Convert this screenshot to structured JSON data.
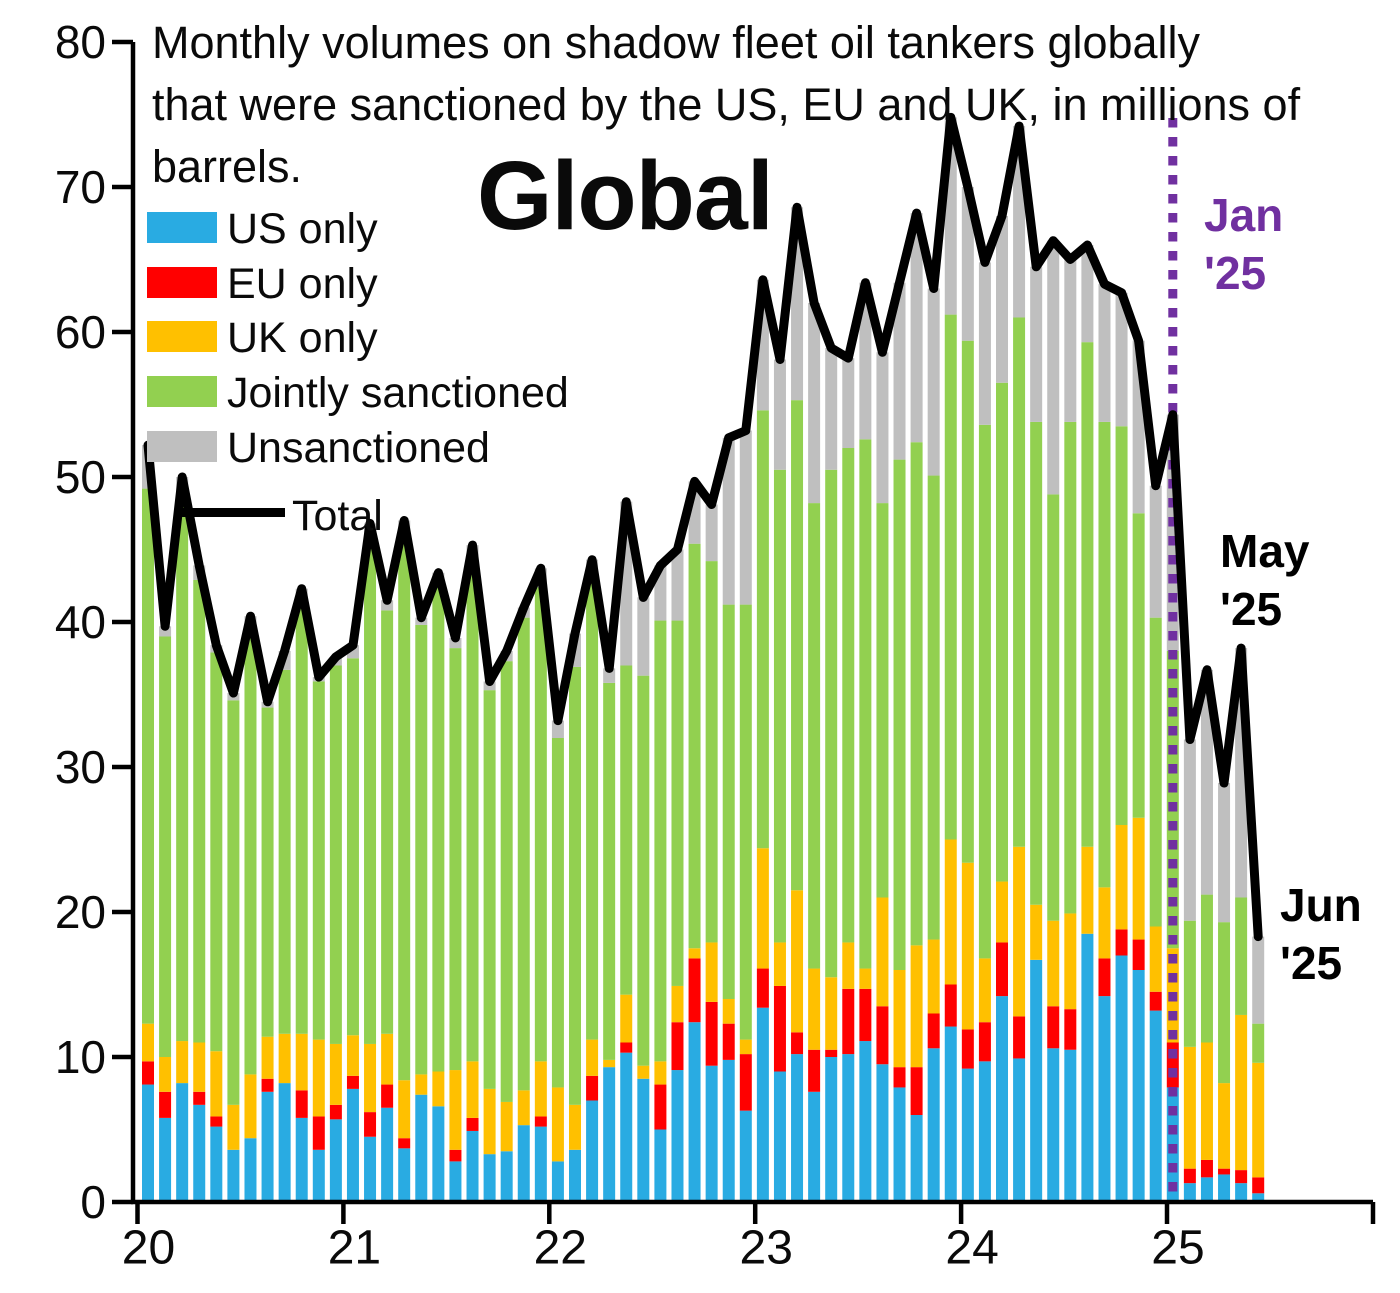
{
  "title": {
    "lines": [
      "Monthly volumes on shadow fleet oil tankers globally",
      "that were sanctioned by the US, EU and UK, in millions of",
      "barrels."
    ]
  },
  "region_label": "Global",
  "legend": [
    {
      "label": "US only",
      "color": "#29abe2",
      "type": "box"
    },
    {
      "label": "EU only",
      "color": "#ff0000",
      "type": "box"
    },
    {
      "label": "UK only",
      "color": "#ffc000",
      "type": "box"
    },
    {
      "label": "Jointly sanctioned",
      "color": "#92d050",
      "type": "box"
    },
    {
      "label": "Unsanctioned",
      "color": "#bfbfbf",
      "type": "box"
    },
    {
      "label": "Total",
      "color": "#000000",
      "type": "line"
    }
  ],
  "annotations": {
    "jan25": {
      "text": "Jan\n'25",
      "color": "#7030a0"
    },
    "may25": {
      "text": "May\n'25",
      "color": "#000000"
    },
    "jun25": {
      "text": "Jun\n'25",
      "color": "#000000"
    }
  },
  "axes": {
    "y": {
      "min": 0,
      "max": 80,
      "step": 10,
      "tick_labels": [
        "0",
        "10",
        "20",
        "30",
        "40",
        "50",
        "60",
        "70",
        "80"
      ]
    },
    "x": {
      "tick_labels": [
        "20",
        "21",
        "22",
        "23",
        "24",
        "25"
      ]
    }
  },
  "chart_data": {
    "type": "bar",
    "subtype": "stacked-monthly-with-total-line",
    "title": "Monthly volumes on shadow fleet oil tankers globally that were sanctioned by the US, EU and UK, in millions of barrels.",
    "x_start": "2020-01",
    "x_end": "2025-06",
    "n_months": 66,
    "ylim": [
      0,
      80
    ],
    "event_line": {
      "x_month": "2025-01",
      "color": "#7030a0",
      "style": "dotted"
    },
    "series": [
      {
        "name": "US only",
        "color": "#29abe2",
        "values": [
          8.1,
          5.8,
          8.2,
          6.7,
          5.2,
          3.6,
          4.4,
          7.6,
          8.2,
          5.8,
          3.6,
          5.7,
          7.8,
          4.5,
          6.5,
          3.7,
          7.4,
          6.6,
          2.8,
          4.9,
          3.3,
          3.5,
          5.3,
          5.2,
          2.8,
          3.6,
          7.0,
          9.3,
          10.3,
          8.5,
          5.0,
          9.1,
          12.4,
          9.4,
          9.8,
          6.3,
          13.4,
          9.0,
          10.2,
          7.6,
          10.0,
          10.2,
          11.1,
          9.5,
          7.9,
          6.0,
          10.6,
          12.1,
          9.2,
          9.7,
          14.2,
          9.9,
          16.7,
          10.6,
          10.5,
          18.5,
          14.2,
          17.0,
          16.0,
          13.2,
          7.9,
          1.3,
          1.7,
          1.9,
          1.3,
          0.6
        ]
      },
      {
        "name": "EU only",
        "color": "#ff0000",
        "values": [
          1.6,
          1.8,
          0.0,
          0.9,
          0.7,
          0.0,
          0.0,
          0.9,
          0.0,
          1.9,
          2.3,
          1.0,
          0.9,
          1.7,
          1.6,
          0.7,
          0.0,
          0.0,
          0.8,
          0.9,
          0.0,
          0.0,
          0.0,
          0.7,
          0.0,
          0.0,
          1.7,
          0.0,
          0.7,
          0.0,
          3.1,
          3.3,
          4.4,
          4.4,
          2.5,
          3.9,
          2.7,
          5.9,
          1.5,
          2.9,
          0.5,
          4.5,
          3.6,
          4.0,
          1.4,
          3.3,
          2.4,
          2.9,
          2.7,
          2.7,
          3.7,
          2.9,
          0.0,
          2.9,
          2.8,
          0.0,
          2.6,
          1.8,
          2.1,
          1.3,
          3.1,
          1.0,
          1.2,
          0.4,
          0.9,
          1.1
        ]
      },
      {
        "name": "UK only",
        "color": "#ffc000",
        "values": [
          2.6,
          2.4,
          2.9,
          3.4,
          4.5,
          3.1,
          4.4,
          2.9,
          3.4,
          3.9,
          5.3,
          4.2,
          2.8,
          4.7,
          3.5,
          4.0,
          1.4,
          2.4,
          5.5,
          3.9,
          4.5,
          3.4,
          2.4,
          3.8,
          5.1,
          3.1,
          2.5,
          0.5,
          3.3,
          0.9,
          1.6,
          2.5,
          0.7,
          4.1,
          1.7,
          1.0,
          8.3,
          3.0,
          9.8,
          5.6,
          5.0,
          3.2,
          1.4,
          7.5,
          6.7,
          8.4,
          5.1,
          10.0,
          11.5,
          4.4,
          4.2,
          11.7,
          3.8,
          5.9,
          6.6,
          6.0,
          4.9,
          7.2,
          8.4,
          4.5,
          6.5,
          8.4,
          8.1,
          5.9,
          10.7,
          7.9
        ]
      },
      {
        "name": "Jointly sanctioned",
        "color": "#92d050",
        "values": [
          36.9,
          29.0,
          37.5,
          31.9,
          27.5,
          27.9,
          30.6,
          22.7,
          25.1,
          29.4,
          24.7,
          26.1,
          26.0,
          35.2,
          29.2,
          37.9,
          31.0,
          33.6,
          29.1,
          34.1,
          27.5,
          30.4,
          32.6,
          32.7,
          24.1,
          30.2,
          31.8,
          26.0,
          22.7,
          26.9,
          30.4,
          25.2,
          27.9,
          26.3,
          27.2,
          30.0,
          30.2,
          32.6,
          33.8,
          32.1,
          35.0,
          34.1,
          36.5,
          27.2,
          35.2,
          34.7,
          32.0,
          36.2,
          36.0,
          36.8,
          34.4,
          36.5,
          33.3,
          29.4,
          33.9,
          34.8,
          32.1,
          27.5,
          21.0,
          21.3,
          20.5,
          8.7,
          10.2,
          11.1,
          8.1,
          2.7
        ]
      },
      {
        "name": "Unsanctioned",
        "color": "#bfbfbf",
        "values": [
          3.0,
          0.7,
          1.4,
          1.0,
          0.5,
          0.5,
          1.0,
          0.4,
          1.3,
          1.3,
          0.3,
          0.6,
          0.9,
          0.7,
          0.7,
          0.7,
          0.5,
          0.8,
          0.7,
          1.5,
          0.6,
          0.7,
          0.7,
          1.3,
          1.2,
          2.3,
          1.3,
          1.0,
          11.3,
          5.4,
          3.8,
          4.9,
          4.3,
          3.9,
          11.5,
          12.0,
          9.0,
          7.6,
          13.3,
          13.8,
          8.4,
          6.2,
          10.8,
          10.4,
          12.2,
          15.8,
          12.9,
          13.6,
          10.6,
          11.2,
          11.5,
          13.2,
          10.7,
          17.5,
          11.2,
          6.7,
          9.5,
          9.2,
          11.9,
          9.1,
          16.3,
          12.5,
          15.5,
          9.6,
          17.2,
          6.0
        ]
      }
    ],
    "total_line": {
      "name": "Total",
      "color": "#000000",
      "is_sum_of_series": true
    },
    "legend_position": "upper-left",
    "grid": false
  }
}
